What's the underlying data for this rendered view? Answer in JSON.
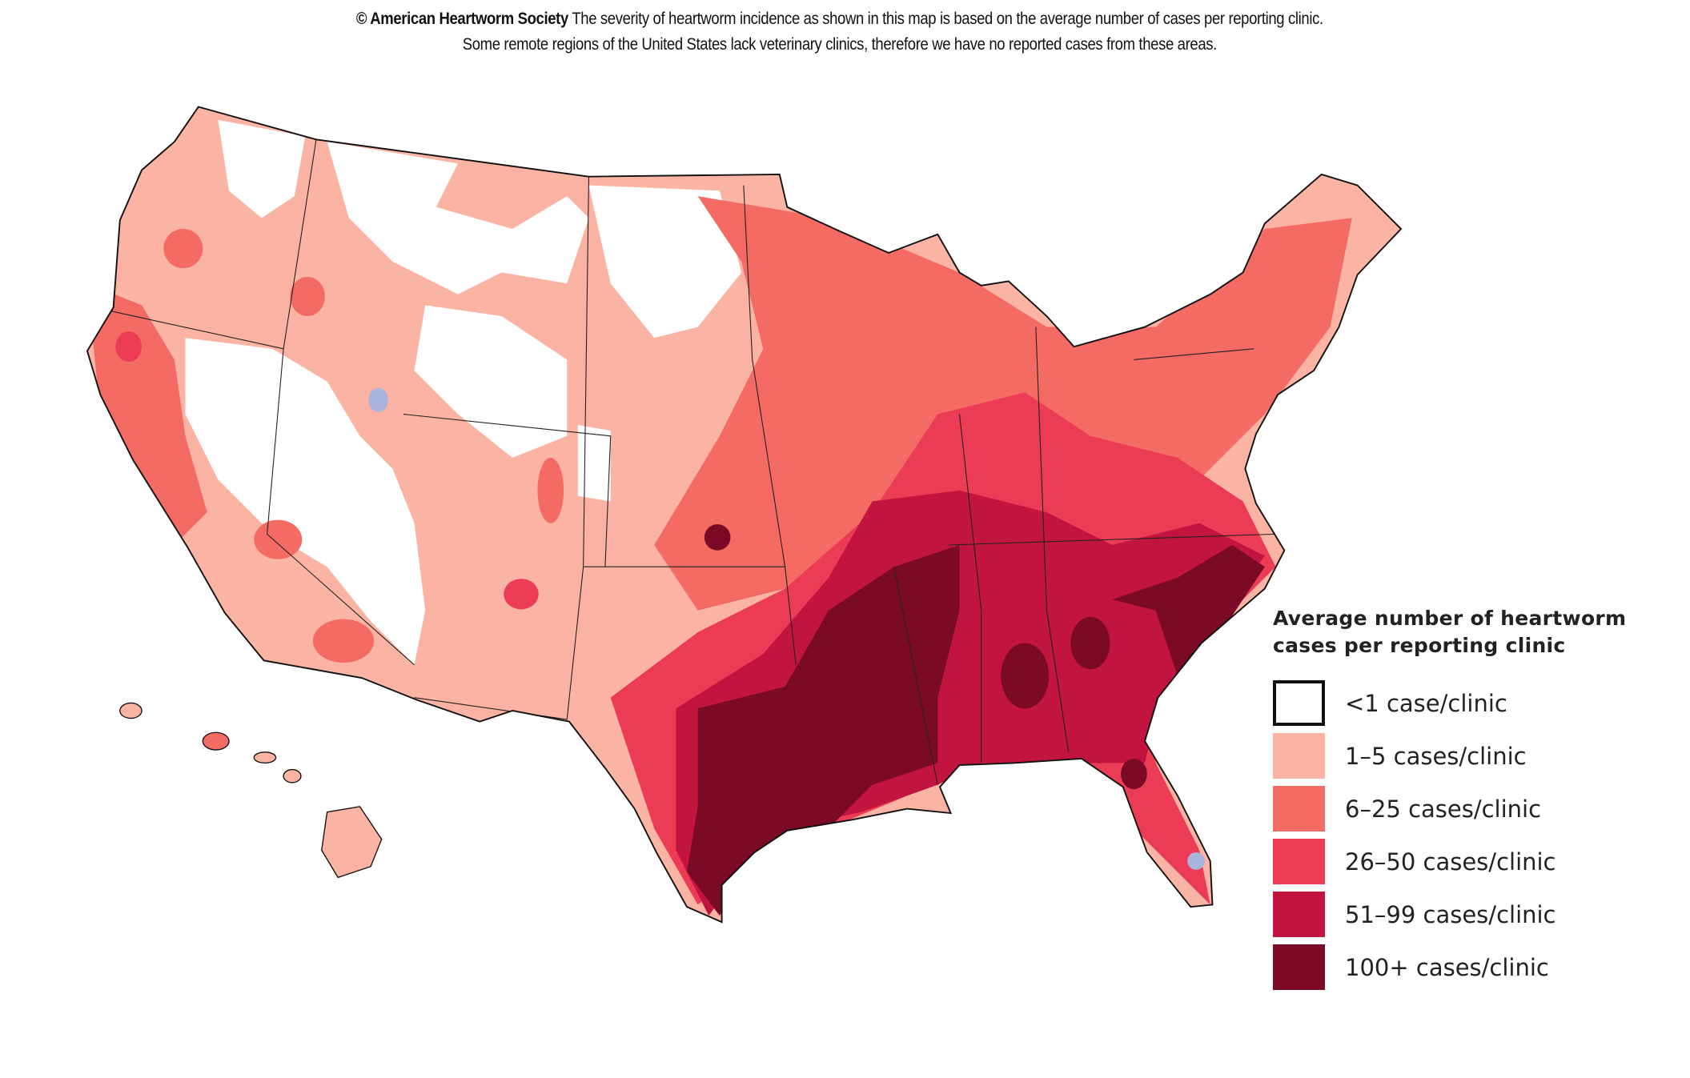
{
  "header": {
    "credit": "© American Heartworm Society",
    "line1": " The severity of heartworm incidence as shown in this map is based on the average number of cases per reporting clinic.",
    "line2": "Some remote regions of the United States lack veterinary clinics, therefore we have no reported cases from these areas."
  },
  "legend": {
    "title_line1": "Average number of heartworm",
    "title_line2": "cases per reporting clinic",
    "items": [
      {
        "label": "<1 case/clinic",
        "color": "#ffffff"
      },
      {
        "label": "1–5 cases/clinic",
        "color": "#fbb3a4"
      },
      {
        "label": "6–25 cases/clinic",
        "color": "#f36b63"
      },
      {
        "label": "26–50 cases/clinic",
        "color": "#ec3b55"
      },
      {
        "label": "51–99 cases/clinic",
        "color": "#c1143f"
      },
      {
        "label": "100+ cases/clinic",
        "color": "#7a0a26"
      }
    ]
  },
  "map": {
    "region": "United States",
    "no_data_color": "#a8b4dc"
  }
}
